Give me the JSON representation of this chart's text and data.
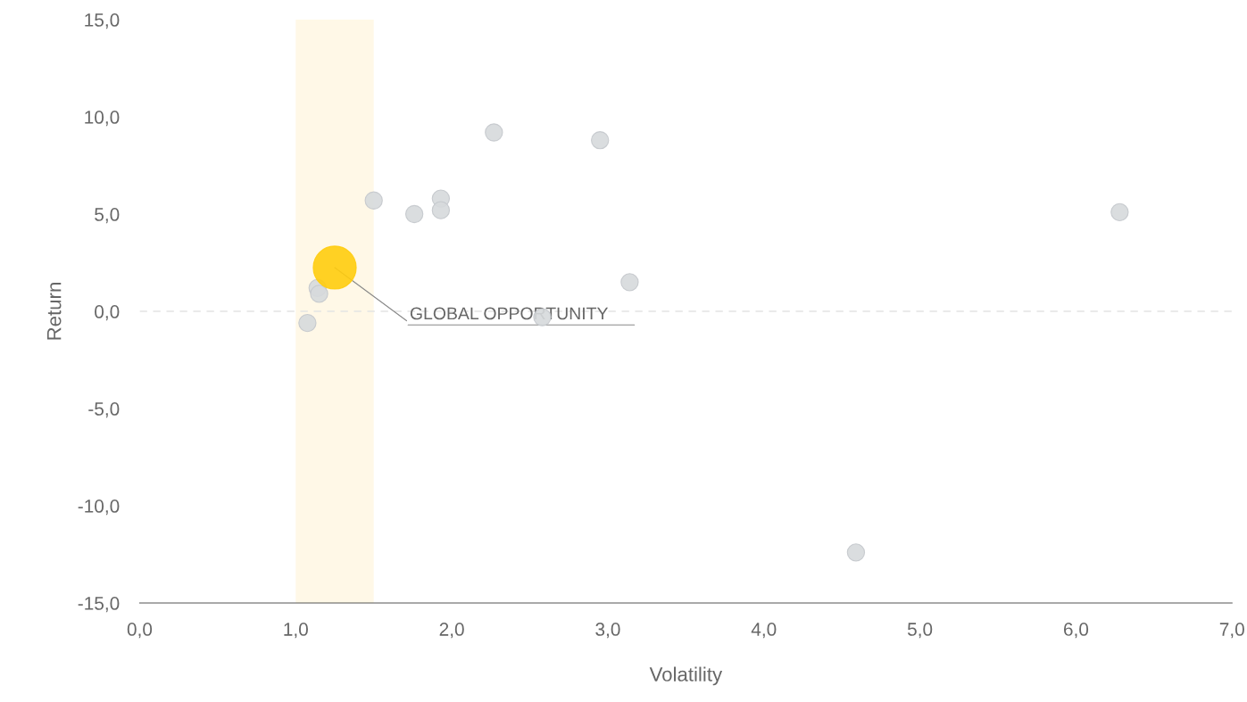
{
  "chart_data": {
    "type": "bubble",
    "xlabel": "Volatility",
    "ylabel": "Return",
    "series": [
      {
        "color": "#d6d9dc",
        "x": [
          1.075,
          1.14,
          1.15,
          1.5,
          1.76,
          1.93,
          1.93,
          2.27,
          2.58,
          2.95,
          3.14,
          4.59,
          6.28
        ],
        "values": [
          -0.6,
          1.2,
          0.9,
          5.7,
          5.0,
          5.8,
          5.2,
          9.2,
          -0.3,
          8.8,
          1.5,
          -12.4,
          5.1
        ],
        "sizes": [
          0.16,
          0.16,
          0.16,
          0.16,
          0.16,
          0.16,
          0.16,
          0.16,
          0.16,
          0.16,
          0.16,
          0.16,
          0.16
        ]
      },
      {
        "color": "#ffcc0d",
        "x": [
          1.25
        ],
        "values": [
          2.25
        ],
        "sizes": [
          1
        ]
      }
    ],
    "xlim": [
      0,
      7
    ],
    "ylim": [
      -15,
      15
    ],
    "xticks": [
      {
        "value": 0,
        "label": "0,0"
      },
      {
        "value": 1,
        "label": "1,0"
      },
      {
        "value": 2,
        "label": "2,0"
      },
      {
        "value": 3,
        "label": "3,0"
      },
      {
        "value": 4,
        "label": "4,0"
      },
      {
        "value": 5,
        "label": "5,0"
      },
      {
        "value": 6,
        "label": "6,0"
      },
      {
        "value": 7,
        "label": "7,0"
      }
    ],
    "yticks": [
      {
        "value": -15,
        "label": "-15,0"
      },
      {
        "value": -10,
        "label": "-10,0"
      },
      {
        "value": -5,
        "label": "-5,0"
      },
      {
        "value": 0,
        "label": "0,0"
      },
      {
        "value": 5,
        "label": "5,0"
      },
      {
        "value": 10,
        "label": "10,0"
      },
      {
        "value": 15,
        "label": "15,0"
      }
    ],
    "ref_lines": [
      {
        "axis": "y",
        "value": 0,
        "color": "#e3e3e3",
        "line_style": "dashed"
      }
    ],
    "bands": [
      {
        "axis": "x",
        "from": 1.0,
        "to": 1.5,
        "color": "#fff8e7"
      }
    ],
    "annotations": [
      {
        "text": "GLOBAL OPPORTUNITY",
        "x": 1.25,
        "y": 2.25
      }
    ],
    "grid": false,
    "legend": false
  }
}
